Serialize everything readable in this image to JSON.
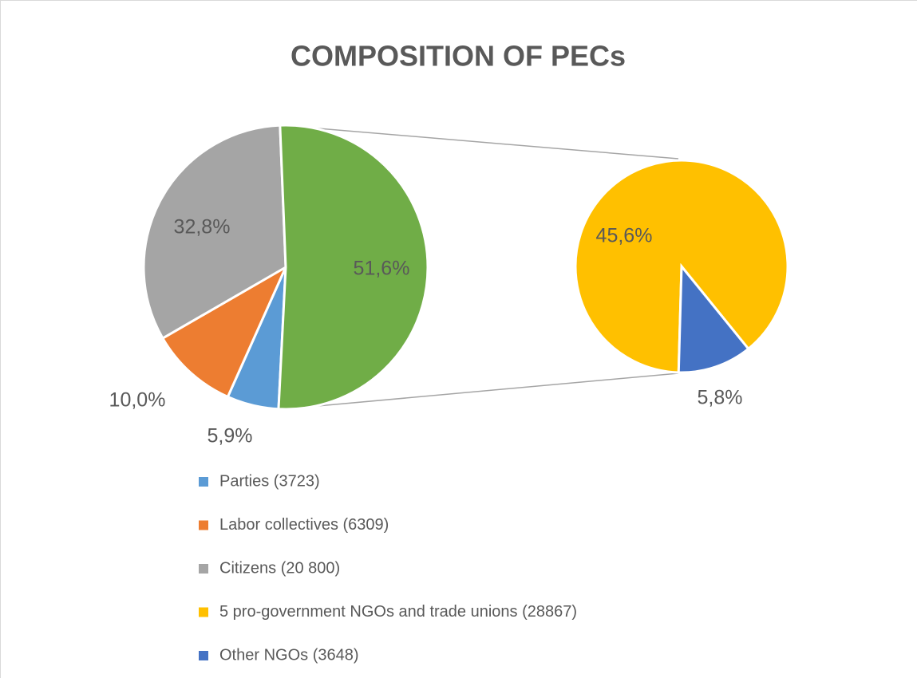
{
  "chart_data": {
    "type": "pie-of-pie",
    "title": "COMPOSITION OF PECs",
    "main": {
      "names": [
        "Parties (3723)",
        "Labor collectives (6309)",
        "Citizens (20 800)",
        null
      ],
      "values": [
        5.9,
        10.0,
        32.8,
        51.6
      ],
      "value_labels": [
        "5,9%",
        "10,0%",
        "32,8%",
        "51,6%"
      ],
      "colors": [
        "#5b9bd5",
        "#ed7d31",
        "#a5a5a5",
        "#70ad47"
      ]
    },
    "secondary": {
      "names": [
        "5 pro-government NGOs and trade unions (28867)",
        "Other NGOs (3648)"
      ],
      "values": [
        45.6,
        5.8
      ],
      "value_labels": [
        "45,6%",
        "5,8%"
      ],
      "colors": [
        "#ffc000",
        "#4472c4"
      ]
    }
  }
}
